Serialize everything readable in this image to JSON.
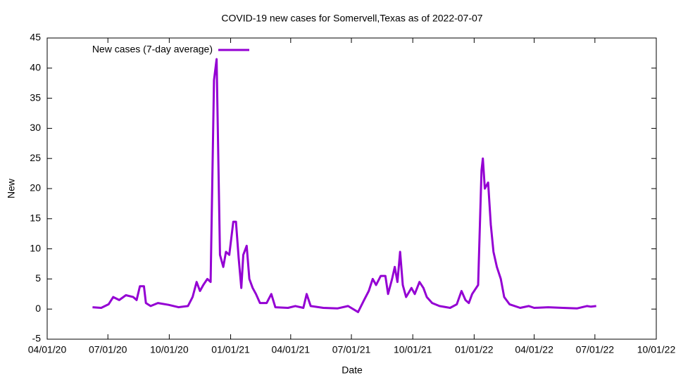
{
  "chart_data": {
    "type": "line",
    "title": "COVID-19 new cases for Somervell,Texas as of 2022-07-07",
    "x_label": "Date",
    "y_label": "New",
    "xlim": [
      "2020-04-01",
      "2022-10-01"
    ],
    "xticks": [
      {
        "value": "2020-04-01",
        "label": "04/01/20"
      },
      {
        "value": "2020-07-01",
        "label": "07/01/20"
      },
      {
        "value": "2020-10-01",
        "label": "10/01/20"
      },
      {
        "value": "2021-01-01",
        "label": "01/01/21"
      },
      {
        "value": "2021-04-01",
        "label": "04/01/21"
      },
      {
        "value": "2021-07-01",
        "label": "07/01/21"
      },
      {
        "value": "2021-10-01",
        "label": "10/01/21"
      },
      {
        "value": "2022-01-01",
        "label": "01/01/22"
      },
      {
        "value": "2022-04-01",
        "label": "04/01/22"
      },
      {
        "value": "2022-07-01",
        "label": "07/01/22"
      },
      {
        "value": "2022-10-01",
        "label": "10/01/22"
      }
    ],
    "ylim": [
      -5,
      45
    ],
    "yticks": [
      -5,
      0,
      5,
      10,
      15,
      20,
      25,
      30,
      35,
      40,
      45
    ],
    "legend": "top-left",
    "x": [
      "2020-06-08",
      "2020-06-21",
      "2020-07-02",
      "2020-07-09",
      "2020-07-18",
      "2020-07-28",
      "2020-08-08",
      "2020-08-13",
      "2020-08-18",
      "2020-08-24",
      "2020-08-27",
      "2020-09-03",
      "2020-09-14",
      "2020-09-30",
      "2020-10-15",
      "2020-10-29",
      "2020-11-05",
      "2020-11-11",
      "2020-11-16",
      "2020-11-21",
      "2020-11-27",
      "2020-12-02",
      "2020-12-07",
      "2020-12-11",
      "2020-12-16",
      "2020-12-21",
      "2020-12-25",
      "2020-12-30",
      "2021-01-05",
      "2021-01-09",
      "2021-01-13",
      "2021-01-17",
      "2021-01-20",
      "2021-01-25",
      "2021-01-29",
      "2021-02-03",
      "2021-02-08",
      "2021-02-14",
      "2021-02-24",
      "2021-03-03",
      "2021-03-09",
      "2021-03-28",
      "2021-04-08",
      "2021-04-20",
      "2021-04-25",
      "2021-05-01",
      "2021-05-20",
      "2021-06-10",
      "2021-06-26",
      "2021-07-11",
      "2021-07-20",
      "2021-07-27",
      "2021-08-02",
      "2021-08-07",
      "2021-08-14",
      "2021-08-21",
      "2021-08-25",
      "2021-08-31",
      "2021-09-04",
      "2021-09-08",
      "2021-09-12",
      "2021-09-16",
      "2021-09-21",
      "2021-09-29",
      "2021-10-04",
      "2021-10-11",
      "2021-10-17",
      "2021-10-22",
      "2021-10-30",
      "2021-11-10",
      "2021-11-26",
      "2021-12-06",
      "2021-12-13",
      "2021-12-19",
      "2021-12-24",
      "2021-12-29",
      "2022-01-07",
      "2022-01-12",
      "2022-01-14",
      "2022-01-17",
      "2022-01-22",
      "2022-01-26",
      "2022-01-30",
      "2022-02-04",
      "2022-02-10",
      "2022-02-15",
      "2022-02-23",
      "2022-03-11",
      "2022-03-24",
      "2022-04-01",
      "2022-04-22",
      "2022-05-14",
      "2022-06-04",
      "2022-06-19",
      "2022-06-25",
      "2022-07-03"
    ],
    "series": [
      {
        "name": "New cases (7-day average)",
        "color": "#9400d3",
        "values": [
          0.3,
          0.2,
          0.8,
          2.0,
          1.5,
          2.3,
          2.0,
          1.5,
          3.8,
          3.8,
          1.0,
          0.5,
          1.0,
          0.7,
          0.3,
          0.5,
          2.0,
          4.5,
          3.0,
          4.0,
          5.0,
          4.5,
          38,
          41.5,
          9,
          7,
          9.5,
          9,
          14.5,
          14.5,
          8.5,
          3.5,
          9,
          10.5,
          5,
          3.5,
          2.5,
          1,
          1,
          2.5,
          0.3,
          0.2,
          0.5,
          0.2,
          2.5,
          0.5,
          0.2,
          0.1,
          0.5,
          -0.5,
          1.5,
          3,
          5,
          4,
          5.5,
          5.5,
          2.5,
          5,
          7,
          4.5,
          9.5,
          4,
          2,
          3.5,
          2.5,
          4.5,
          3.5,
          2,
          1,
          0.5,
          0.2,
          0.8,
          3,
          1.5,
          1,
          2.5,
          4,
          23,
          25,
          20,
          21,
          14,
          9.5,
          7,
          5,
          2,
          0.8,
          0.2,
          0.5,
          0.2,
          0.3,
          0.2,
          0.1,
          0.5,
          0.4,
          0.5
        ]
      }
    ]
  }
}
